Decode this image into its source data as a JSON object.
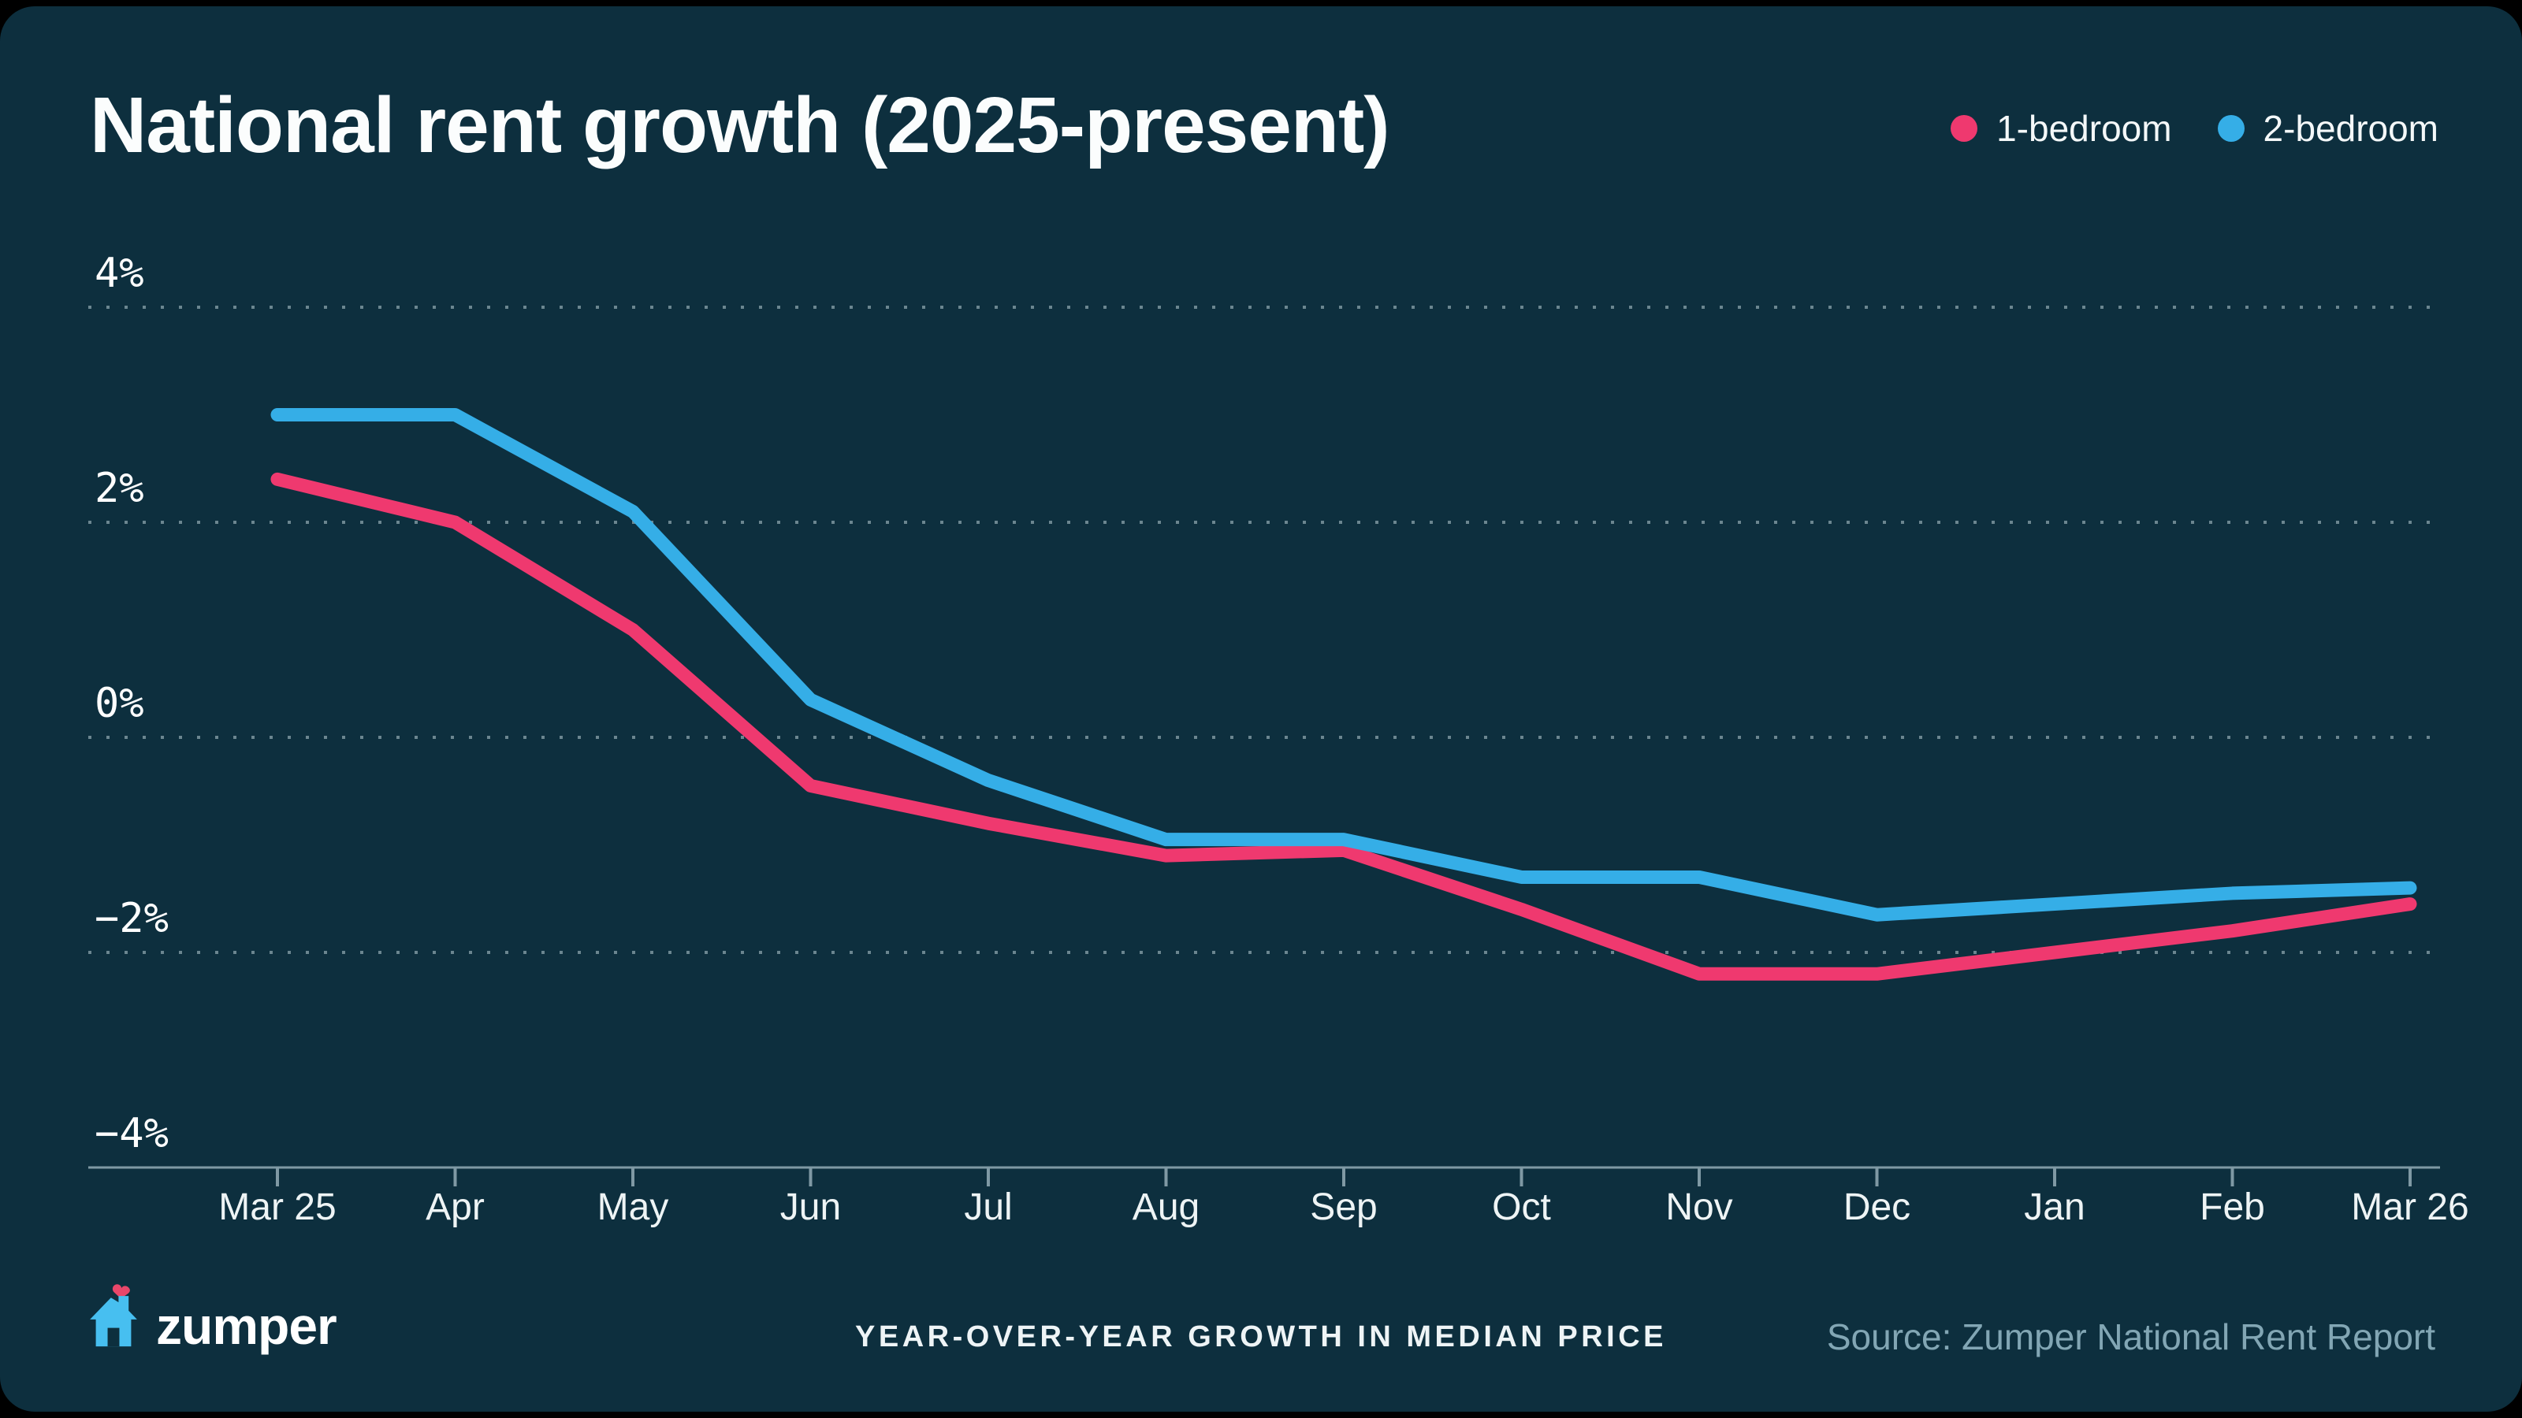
{
  "header": {
    "title": "National rent growth (2025-present)"
  },
  "legend": [
    {
      "label": "1-bedroom",
      "color": "#EF396F"
    },
    {
      "label": "2-bedroom",
      "color": "#35AEE7"
    }
  ],
  "chart_data": {
    "type": "line",
    "categories": [
      "Mar 25",
      "Apr",
      "May",
      "Jun",
      "Jul",
      "Aug",
      "Sep",
      "Oct",
      "Nov",
      "Dec",
      "Jan",
      "Feb",
      "Mar 26"
    ],
    "series": [
      {
        "name": "1-bedroom",
        "color": "#EF396F",
        "values": [
          2.4,
          2.0,
          1.0,
          -0.45,
          -0.8,
          -1.1,
          -1.05,
          -1.6,
          -2.2,
          -2.2,
          -2.0,
          -1.8,
          -1.55
        ]
      },
      {
        "name": "2-bedroom",
        "color": "#35AEE7",
        "values": [
          3.0,
          3.0,
          2.1,
          0.35,
          -0.4,
          -0.95,
          -0.95,
          -1.3,
          -1.3,
          -1.65,
          -1.55,
          -1.45,
          -1.4
        ]
      }
    ],
    "title": "National rent growth (2025-present)",
    "xlabel": "",
    "ylabel": "",
    "ylim": [
      -4,
      4
    ],
    "yticks": [
      {
        "value": 4,
        "label": "4%"
      },
      {
        "value": 2,
        "label": "2%"
      },
      {
        "value": 0,
        "label": "0%"
      },
      {
        "value": -2,
        "label": "−2%"
      },
      {
        "value": -4,
        "label": "−4%"
      }
    ],
    "grid": "dotted horizontal gridlines",
    "legend_position": "top-right"
  },
  "footer": {
    "brand": "zumper",
    "caption": "YEAR-OVER-YEAR GROWTH IN MEDIAN PRICE",
    "source": "Source: Zumper National Rent Report"
  },
  "colors": {
    "outer_background": "#000000",
    "card_background": "#0D2F3E",
    "gridline": "#93ABB4",
    "axis": "#7F99A4",
    "series_1bed": "#EF396F",
    "series_2bed": "#35AEE7",
    "logo_house": "#47BFF0",
    "logo_heart": "#E8476A",
    "source_text": "#82A6B4"
  }
}
